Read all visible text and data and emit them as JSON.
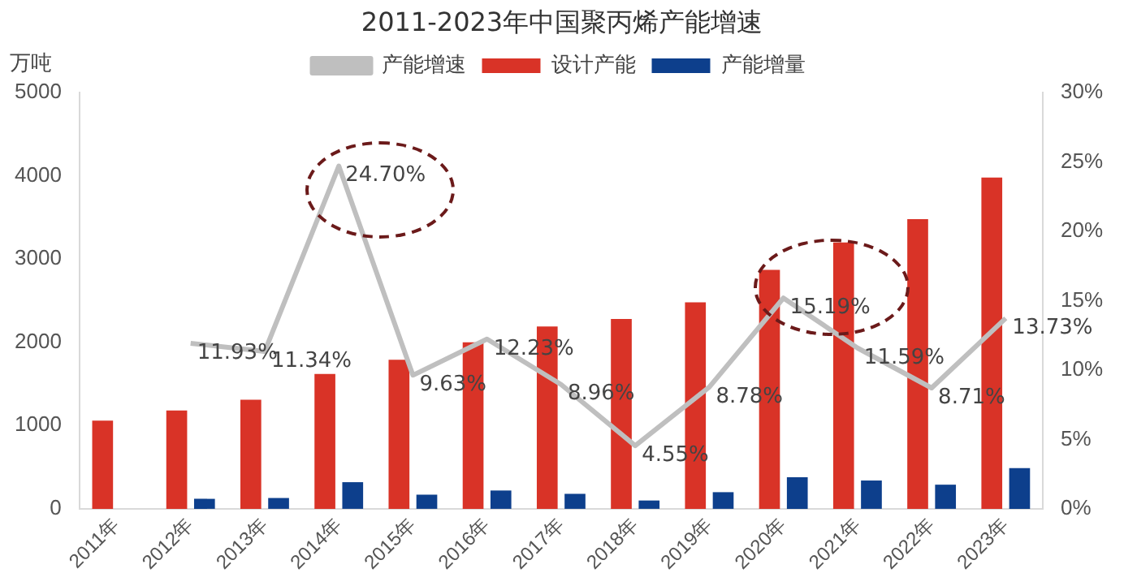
{
  "chart_data": {
    "type": "bar",
    "title": "2011-2023年中国聚丙烯产能增速",
    "ylabel": "万吨",
    "categories": [
      "2011年",
      "2012年",
      "2013年",
      "2014年",
      "2015年",
      "2016年",
      "2017年",
      "2018年",
      "2019年",
      "2020年",
      "2021年",
      "2022年",
      "2023年"
    ],
    "series": [
      {
        "name": "设计产能",
        "color": "#d93327",
        "values": [
          1060,
          1180,
          1310,
          1620,
          1790,
          2000,
          2190,
          2280,
          2480,
          2870,
          3200,
          3480,
          3980
        ]
      },
      {
        "name": "产能增量",
        "color": "#0d3f8c",
        "values": [
          null,
          120,
          130,
          320,
          170,
          220,
          180,
          100,
          200,
          380,
          340,
          290,
          490
        ]
      },
      {
        "name": "产能增速",
        "type": "line",
        "axis": "y2",
        "color": "#bfbfbf",
        "values": [
          null,
          11.93,
          11.34,
          24.7,
          9.63,
          12.23,
          8.96,
          4.55,
          8.78,
          15.19,
          11.59,
          8.71,
          13.73
        ],
        "value_labels": [
          null,
          "11.93%",
          "11.34%",
          "24.70%",
          "9.63%",
          "12.23%",
          "8.96%",
          "4.55%",
          "8.78%",
          "15.19%",
          "11.59%",
          "8.71%",
          "13.73%"
        ]
      }
    ],
    "ylim": [
      0,
      5000
    ],
    "yticks": [
      0,
      1000,
      2000,
      3000,
      4000,
      5000
    ],
    "y2lim": [
      0,
      30
    ],
    "y2ticks": [
      {
        "value": 0,
        "label": "0%"
      },
      {
        "value": 5,
        "label": "5%"
      },
      {
        "value": 10,
        "label": "10%"
      },
      {
        "value": 15,
        "label": "15%"
      },
      {
        "value": 20,
        "label": "20%"
      },
      {
        "value": 25,
        "label": "25%"
      },
      {
        "value": 30,
        "label": "30%"
      }
    ],
    "grid": false,
    "legend": "top",
    "marker": "none"
  }
}
